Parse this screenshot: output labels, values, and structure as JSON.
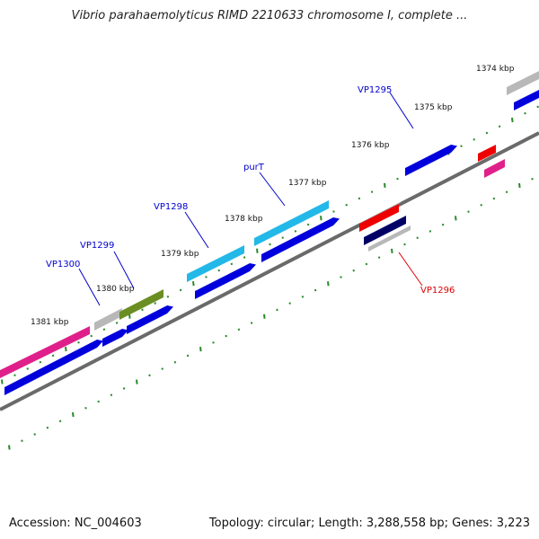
{
  "title": "Vibrio parahaemolyticus RIMD 2210633 chromosome I, complete ...",
  "footer": {
    "accession": "Accession: NC_004603",
    "summary": "Topology: circular; Length: 3,288,558 bp; Genes: 3,223"
  },
  "ticks": [
    "1374 kbp",
    "1375 kbp",
    "1376 kbp",
    "1377 kbp",
    "1378 kbp",
    "1379 kbp",
    "1380 kbp",
    "1381 kbp"
  ],
  "gene_labels": [
    {
      "text": "VP1295",
      "color": "#0000cc"
    },
    {
      "text": "purT",
      "color": "#0000cc"
    },
    {
      "text": "VP1298",
      "color": "#0000cc"
    },
    {
      "text": "VP1299",
      "color": "#0000cc"
    },
    {
      "text": "VP1300",
      "color": "#0000cc"
    },
    {
      "text": "VP1296",
      "color": "#dd0000"
    }
  ],
  "colors": {
    "backbone": "#777777",
    "tick_dots": "#2a8a2a",
    "cds_blue": "#0000dd",
    "gene_cyan": "#22b8e8",
    "gene_pink": "#e0208a",
    "gene_olive": "#6b8e23",
    "gene_gray": "#b8b8b8",
    "gene_red": "#ee0000",
    "gene_navy": "#000066"
  }
}
